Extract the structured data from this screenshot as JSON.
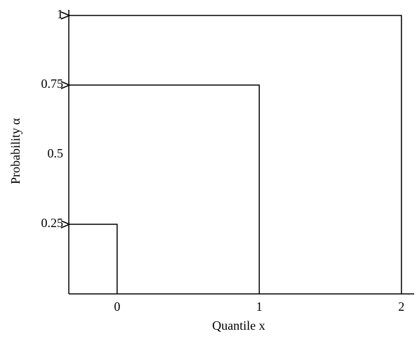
{
  "chart_data": {
    "type": "quantile-arrows",
    "x_label": "Quantile x",
    "y_label": "Probability α",
    "x": [
      0,
      1,
      2
    ],
    "values": [
      0.25,
      0.75,
      1
    ],
    "color": "#000000",
    "xlim": [
      -0.34,
      2.09
    ],
    "xticks": [
      0,
      1,
      2
    ],
    "ylim": [
      0,
      1
    ],
    "yticks": [
      0.25,
      0.5,
      0.75,
      1
    ]
  }
}
